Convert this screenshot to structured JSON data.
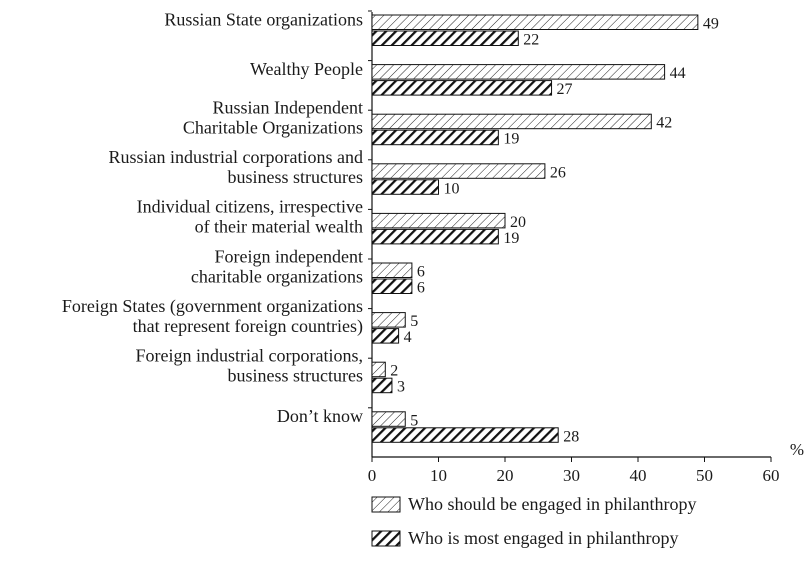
{
  "chart_data": {
    "type": "bar",
    "orientation": "horizontal",
    "categories": [
      [
        "Russian State organizations"
      ],
      [
        "Wealthy People"
      ],
      [
        "Russian Independent",
        "Charitable Organizations"
      ],
      [
        "Russian industrial corporations and",
        "business structures"
      ],
      [
        "Individual citizens, irrespective",
        "of their material wealth"
      ],
      [
        "Foreign independent",
        "charitable organizations"
      ],
      [
        "Foreign States (government organizations",
        "that represent foreign countries)"
      ],
      [
        "Foreign industrial corporations,",
        "business structures"
      ],
      [
        "Don’t know"
      ]
    ],
    "series": [
      {
        "name": "Who should be engaged in philanthropy",
        "values": [
          49,
          44,
          42,
          26,
          20,
          6,
          5,
          2,
          5
        ],
        "pattern": "light-hatch"
      },
      {
        "name": "Who is most engaged in philanthropy",
        "values": [
          22,
          27,
          19,
          10,
          19,
          6,
          4,
          3,
          28
        ],
        "pattern": "dark-hatch"
      }
    ],
    "xlim": [
      0,
      60
    ],
    "xticks": [
      0,
      10,
      20,
      30,
      40,
      50,
      60
    ],
    "xunit": "%",
    "grid": false,
    "legend": "bottom"
  }
}
